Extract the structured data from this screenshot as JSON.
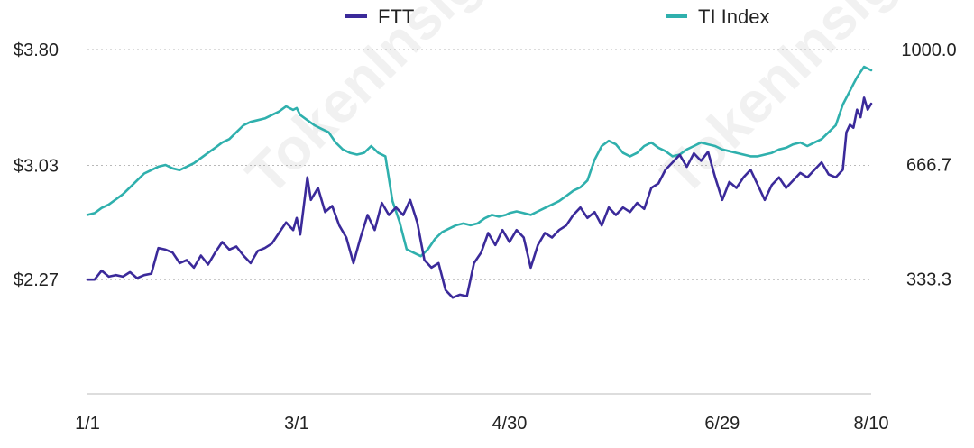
{
  "chart_data": {
    "type": "line",
    "title": "",
    "xlabel": "",
    "ylabel_left": "",
    "ylabel_right": "",
    "x_tick_labels": [
      "1/1",
      "3/1",
      "4/30",
      "6/29",
      "8/10"
    ],
    "x_tick_positions_day": [
      0,
      59,
      119,
      179,
      221
    ],
    "x_range_day": [
      0,
      221
    ],
    "y_left": {
      "ticks": [
        "$2.27",
        "$3.03",
        "$3.80"
      ],
      "tick_values": [
        2.27,
        3.03,
        3.8
      ],
      "range": [
        1.51,
        3.8
      ]
    },
    "y_right": {
      "ticks": [
        "333.3",
        "666.7",
        "1000.0"
      ],
      "tick_values": [
        333.3,
        666.7,
        1000.0
      ],
      "range": [
        0,
        1000
      ]
    },
    "grid": "horizontal dotted",
    "legend_position": "top",
    "series": [
      {
        "name": "FTT",
        "axis": "left",
        "color": "#3b2a9a",
        "points": [
          [
            0,
            2.27
          ],
          [
            2,
            2.27
          ],
          [
            4,
            2.33
          ],
          [
            6,
            2.29
          ],
          [
            8,
            2.3
          ],
          [
            10,
            2.29
          ],
          [
            12,
            2.32
          ],
          [
            14,
            2.28
          ],
          [
            16,
            2.3
          ],
          [
            18,
            2.31
          ],
          [
            20,
            2.48
          ],
          [
            22,
            2.47
          ],
          [
            24,
            2.45
          ],
          [
            26,
            2.38
          ],
          [
            28,
            2.4
          ],
          [
            30,
            2.35
          ],
          [
            32,
            2.43
          ],
          [
            34,
            2.37
          ],
          [
            36,
            2.45
          ],
          [
            38,
            2.52
          ],
          [
            40,
            2.47
          ],
          [
            42,
            2.49
          ],
          [
            44,
            2.43
          ],
          [
            46,
            2.38
          ],
          [
            48,
            2.46
          ],
          [
            50,
            2.48
          ],
          [
            52,
            2.51
          ],
          [
            54,
            2.58
          ],
          [
            56,
            2.65
          ],
          [
            58,
            2.6
          ],
          [
            59,
            2.68
          ],
          [
            60,
            2.57
          ],
          [
            62,
            2.95
          ],
          [
            63,
            2.8
          ],
          [
            65,
            2.88
          ],
          [
            67,
            2.72
          ],
          [
            69,
            2.76
          ],
          [
            71,
            2.63
          ],
          [
            73,
            2.55
          ],
          [
            75,
            2.38
          ],
          [
            77,
            2.55
          ],
          [
            79,
            2.7
          ],
          [
            81,
            2.6
          ],
          [
            83,
            2.78
          ],
          [
            85,
            2.7
          ],
          [
            87,
            2.75
          ],
          [
            89,
            2.7
          ],
          [
            91,
            2.8
          ],
          [
            93,
            2.65
          ],
          [
            95,
            2.4
          ],
          [
            97,
            2.35
          ],
          [
            99,
            2.38
          ],
          [
            101,
            2.2
          ],
          [
            103,
            2.15
          ],
          [
            105,
            2.17
          ],
          [
            107,
            2.16
          ],
          [
            109,
            2.38
          ],
          [
            111,
            2.45
          ],
          [
            113,
            2.58
          ],
          [
            115,
            2.5
          ],
          [
            117,
            2.6
          ],
          [
            119,
            2.52
          ],
          [
            121,
            2.6
          ],
          [
            123,
            2.55
          ],
          [
            125,
            2.35
          ],
          [
            127,
            2.5
          ],
          [
            129,
            2.58
          ],
          [
            131,
            2.55
          ],
          [
            133,
            2.6
          ],
          [
            135,
            2.63
          ],
          [
            137,
            2.7
          ],
          [
            139,
            2.75
          ],
          [
            141,
            2.68
          ],
          [
            143,
            2.72
          ],
          [
            145,
            2.63
          ],
          [
            147,
            2.75
          ],
          [
            149,
            2.7
          ],
          [
            151,
            2.75
          ],
          [
            153,
            2.72
          ],
          [
            155,
            2.78
          ],
          [
            157,
            2.74
          ],
          [
            159,
            2.88
          ],
          [
            161,
            2.91
          ],
          [
            163,
            3.0
          ],
          [
            165,
            3.05
          ],
          [
            167,
            3.1
          ],
          [
            169,
            3.02
          ],
          [
            171,
            3.11
          ],
          [
            173,
            3.06
          ],
          [
            175,
            3.12
          ],
          [
            177,
            2.95
          ],
          [
            179,
            2.8
          ],
          [
            181,
            2.92
          ],
          [
            183,
            2.88
          ],
          [
            185,
            2.95
          ],
          [
            187,
            3.0
          ],
          [
            189,
            2.9
          ],
          [
            191,
            2.8
          ],
          [
            193,
            2.9
          ],
          [
            195,
            2.95
          ],
          [
            197,
            2.88
          ],
          [
            199,
            2.93
          ],
          [
            201,
            2.98
          ],
          [
            203,
            2.95
          ],
          [
            205,
            3.0
          ],
          [
            207,
            3.05
          ],
          [
            209,
            2.97
          ],
          [
            211,
            2.95
          ],
          [
            213,
            3.0
          ],
          [
            214,
            3.25
          ],
          [
            215,
            3.3
          ],
          [
            216,
            3.28
          ],
          [
            217,
            3.4
          ],
          [
            218,
            3.35
          ],
          [
            219,
            3.48
          ],
          [
            220,
            3.4
          ],
          [
            221,
            3.44
          ]
        ]
      },
      {
        "name": "TI Index",
        "axis": "right",
        "color": "#2fb0ad",
        "points": [
          [
            0,
            520
          ],
          [
            2,
            525
          ],
          [
            4,
            540
          ],
          [
            6,
            550
          ],
          [
            8,
            565
          ],
          [
            10,
            580
          ],
          [
            12,
            600
          ],
          [
            14,
            620
          ],
          [
            16,
            640
          ],
          [
            18,
            650
          ],
          [
            20,
            660
          ],
          [
            22,
            665
          ],
          [
            24,
            655
          ],
          [
            26,
            650
          ],
          [
            28,
            660
          ],
          [
            30,
            670
          ],
          [
            32,
            685
          ],
          [
            34,
            700
          ],
          [
            36,
            715
          ],
          [
            38,
            730
          ],
          [
            40,
            740
          ],
          [
            42,
            760
          ],
          [
            44,
            780
          ],
          [
            46,
            790
          ],
          [
            48,
            795
          ],
          [
            50,
            800
          ],
          [
            52,
            810
          ],
          [
            54,
            820
          ],
          [
            56,
            835
          ],
          [
            58,
            825
          ],
          [
            59,
            830
          ],
          [
            60,
            810
          ],
          [
            62,
            795
          ],
          [
            64,
            780
          ],
          [
            66,
            770
          ],
          [
            68,
            760
          ],
          [
            70,
            730
          ],
          [
            72,
            710
          ],
          [
            74,
            700
          ],
          [
            76,
            695
          ],
          [
            78,
            700
          ],
          [
            80,
            720
          ],
          [
            82,
            700
          ],
          [
            84,
            690
          ],
          [
            86,
            560
          ],
          [
            88,
            500
          ],
          [
            90,
            420
          ],
          [
            92,
            410
          ],
          [
            94,
            400
          ],
          [
            96,
            420
          ],
          [
            98,
            450
          ],
          [
            100,
            470
          ],
          [
            102,
            480
          ],
          [
            104,
            490
          ],
          [
            106,
            495
          ],
          [
            108,
            490
          ],
          [
            110,
            495
          ],
          [
            112,
            510
          ],
          [
            114,
            520
          ],
          [
            116,
            515
          ],
          [
            118,
            520
          ],
          [
            119,
            525
          ],
          [
            121,
            530
          ],
          [
            123,
            525
          ],
          [
            125,
            520
          ],
          [
            127,
            530
          ],
          [
            129,
            540
          ],
          [
            131,
            550
          ],
          [
            133,
            560
          ],
          [
            135,
            575
          ],
          [
            137,
            590
          ],
          [
            139,
            600
          ],
          [
            141,
            620
          ],
          [
            143,
            680
          ],
          [
            145,
            720
          ],
          [
            147,
            735
          ],
          [
            149,
            725
          ],
          [
            151,
            700
          ],
          [
            153,
            690
          ],
          [
            155,
            700
          ],
          [
            157,
            720
          ],
          [
            159,
            730
          ],
          [
            161,
            715
          ],
          [
            163,
            705
          ],
          [
            165,
            690
          ],
          [
            167,
            695
          ],
          [
            169,
            710
          ],
          [
            171,
            720
          ],
          [
            173,
            730
          ],
          [
            175,
            725
          ],
          [
            177,
            720
          ],
          [
            179,
            710
          ],
          [
            181,
            705
          ],
          [
            183,
            700
          ],
          [
            185,
            695
          ],
          [
            187,
            690
          ],
          [
            189,
            690
          ],
          [
            191,
            695
          ],
          [
            193,
            700
          ],
          [
            195,
            710
          ],
          [
            197,
            715
          ],
          [
            199,
            725
          ],
          [
            201,
            730
          ],
          [
            203,
            720
          ],
          [
            205,
            730
          ],
          [
            207,
            740
          ],
          [
            209,
            760
          ],
          [
            211,
            780
          ],
          [
            213,
            840
          ],
          [
            215,
            880
          ],
          [
            216,
            900
          ],
          [
            217,
            920
          ],
          [
            218,
            935
          ],
          [
            219,
            950
          ],
          [
            220,
            945
          ],
          [
            221,
            940
          ]
        ]
      }
    ],
    "legend": [
      {
        "label": "FTT",
        "color": "#3b2a9a"
      },
      {
        "label": "TI Index",
        "color": "#2fb0ad"
      }
    ],
    "watermark": "TokenInsight"
  }
}
